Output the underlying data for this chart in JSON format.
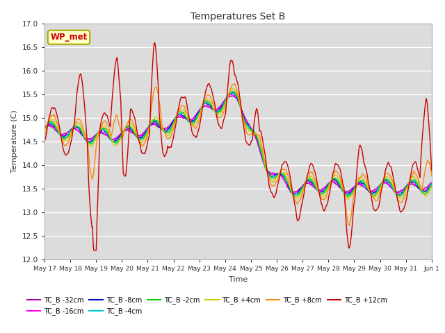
{
  "title": "Temperatures Set B",
  "xlabel": "Time",
  "ylabel": "Temperature (C)",
  "ylim": [
    12.0,
    17.0
  ],
  "yticks": [
    12.0,
    12.5,
    13.0,
    13.5,
    14.0,
    14.5,
    15.0,
    15.5,
    16.0,
    16.5,
    17.0
  ],
  "bg_color": "#dcdcdc",
  "fig_color": "#ffffff",
  "annotation_text": "WP_met",
  "annotation_color": "#cc0000",
  "annotation_bg": "#ffffcc",
  "annotation_border": "#aaaa00",
  "series": [
    {
      "label": "TC_B -32cm",
      "color": "#aa00aa"
    },
    {
      "label": "TC_B -16cm",
      "color": "#ff00ff"
    },
    {
      "label": "TC_B -8cm",
      "color": "#0000cc"
    },
    {
      "label": "TC_B -4cm",
      "color": "#00cccc"
    },
    {
      "label": "TC_B -2cm",
      "color": "#00cc00"
    },
    {
      "label": "TC_B +4cm",
      "color": "#cccc00"
    },
    {
      "label": "TC_B +8cm",
      "color": "#ff8800"
    },
    {
      "label": "TC_B +12cm",
      "color": "#cc0000"
    }
  ],
  "xtick_labels": [
    "May 17",
    "May 18",
    "May 19",
    "May 20",
    "May 21",
    "May 22",
    "May 23",
    "May 24",
    "May 25",
    "May 26",
    "May 27",
    "May 28",
    "May 29",
    "May 30",
    "May 31",
    "Jun 1"
  ],
  "n_points": 960
}
